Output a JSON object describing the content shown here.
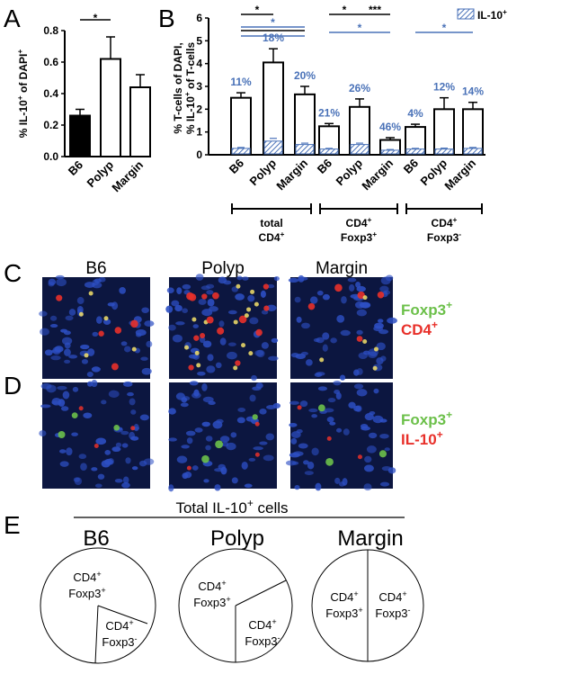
{
  "panel_labels": {
    "a": "A",
    "b": "B",
    "c": "C",
    "d": "D",
    "e": "E"
  },
  "colors": {
    "accent_blue": "#4a72b8",
    "black": "#000000",
    "foxp3_green": "#6cc04a",
    "marker_red": "#e8302a",
    "micro_bg": "#0c1640"
  },
  "panel_a": {
    "ylabel_parts": [
      "% IL-10",
      "+",
      " of DAPI",
      "+"
    ],
    "significance": [
      "*"
    ]
  },
  "panel_b": {
    "ylabel_line1": "% T-cells of DAPI,",
    "ylabel_line2_parts": [
      "% IL-10",
      "+",
      " of T-cells"
    ],
    "legend_label_parts": [
      "IL-10",
      "+"
    ],
    "groups": [
      {
        "line1_parts": [
          "total"
        ],
        "line2_parts": [
          "CD4",
          "+"
        ]
      },
      {
        "line1_parts": [
          "CD4",
          "+"
        ],
        "line2_parts": [
          "Foxp3",
          "+"
        ]
      },
      {
        "line1_parts": [
          "CD4",
          "+"
        ],
        "line2_parts": [
          "Foxp3",
          "-"
        ]
      }
    ],
    "significance": [
      "*",
      "*",
      "*",
      "***",
      "*",
      "*"
    ]
  },
  "chart_data": [
    {
      "type": "bar",
      "panel": "A",
      "categories": [
        "B6",
        "Polyp",
        "Margin"
      ],
      "values": [
        0.26,
        0.62,
        0.44
      ],
      "errors": [
        0.04,
        0.14,
        0.08
      ],
      "bar_fill": [
        "#000000",
        "#ffffff",
        "#ffffff"
      ],
      "ylim": [
        0,
        0.8
      ],
      "yticks": [
        "0.0",
        "0.2",
        "0.4",
        "0.6",
        "0.8"
      ]
    },
    {
      "type": "bar",
      "panel": "B",
      "categories": [
        "B6",
        "Polyp",
        "Margin",
        "B6",
        "Polyp",
        "Margin",
        "B6",
        "Polyp",
        "Margin"
      ],
      "series": [
        {
          "values": [
            2.5,
            4.05,
            2.65,
            1.25,
            2.1,
            0.65,
            1.22,
            2.0,
            2.0
          ],
          "errors": [
            0.22,
            0.6,
            0.35,
            0.12,
            0.35,
            0.1,
            0.12,
            0.5,
            0.3
          ]
        },
        {
          "name": "IL-10+",
          "values": [
            0.28,
            0.6,
            0.45,
            0.25,
            0.45,
            0.2,
            0.25,
            0.25,
            0.28
          ],
          "errors": [
            0.04,
            0.12,
            0.06,
            0.03,
            0.06,
            0.03,
            0.03,
            0.04,
            0.04
          ]
        }
      ],
      "percent_labels": [
        "11%",
        "18%",
        "20%",
        "21%",
        "26%",
        "46%",
        "4%",
        "12%",
        "14%"
      ],
      "ylim": [
        0,
        6
      ],
      "yticks": [
        "0",
        "1",
        "2",
        "3",
        "4",
        "5",
        "6"
      ]
    }
  ],
  "panel_c": {
    "columns": [
      "B6",
      "Polyp",
      "Margin"
    ],
    "legend_top_parts": [
      "Foxp3",
      "+"
    ],
    "legend_bottom_parts": [
      "CD4",
      "+"
    ]
  },
  "panel_d": {
    "legend_top_parts": [
      "Foxp3",
      "+"
    ],
    "legend_bottom_parts": [
      "IL-10",
      "+"
    ]
  },
  "panel_e": {
    "title_parts": [
      "Total IL-10",
      "+",
      " cells"
    ],
    "pies": [
      {
        "name": "B6",
        "fraction_foxp3_pos": 0.88,
        "label_pos_line1": [
          "CD4",
          "+"
        ],
        "label_pos_line2": [
          "Foxp3",
          "+"
        ],
        "label_neg_line1": [
          "CD4",
          "+"
        ],
        "label_neg_line2": [
          "Foxp3",
          "-"
        ]
      },
      {
        "name": "Polyp",
        "fraction_foxp3_pos": 0.74,
        "label_pos_line1": [
          "CD4",
          "+"
        ],
        "label_pos_line2": [
          "Foxp3",
          "+"
        ],
        "label_neg_line1": [
          "CD4",
          "+"
        ],
        "label_neg_line2": [
          "Foxp3",
          "-"
        ]
      },
      {
        "name": "Margin",
        "fraction_foxp3_pos": 0.5,
        "label_pos_line1": [
          "CD4",
          "+"
        ],
        "label_pos_line2": [
          "Foxp3",
          "+"
        ],
        "label_neg_line1": [
          "CD4",
          "+"
        ],
        "label_neg_line2": [
          "Foxp3",
          "-"
        ]
      }
    ]
  }
}
